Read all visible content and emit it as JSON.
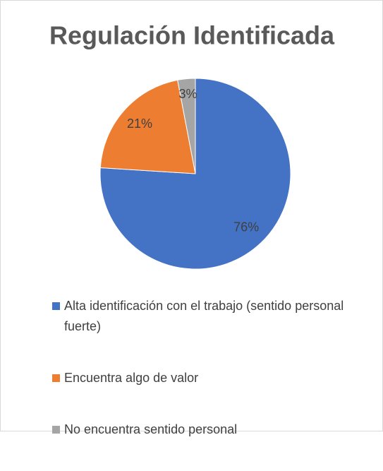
{
  "chart_data": {
    "type": "pie",
    "title": "Regulación Identificada",
    "categories": [
      "Alta identificación con el trabajo (sentido personal fuerte)",
      "Encuentra algo de valor",
      "No encuentra sentido personal"
    ],
    "values": [
      76,
      21,
      3
    ],
    "value_labels": [
      "76%",
      "21%",
      "3%"
    ],
    "colors": [
      "#4472c4",
      "#ed7d31",
      "#a5a5a5"
    ],
    "legend": "bottom"
  }
}
